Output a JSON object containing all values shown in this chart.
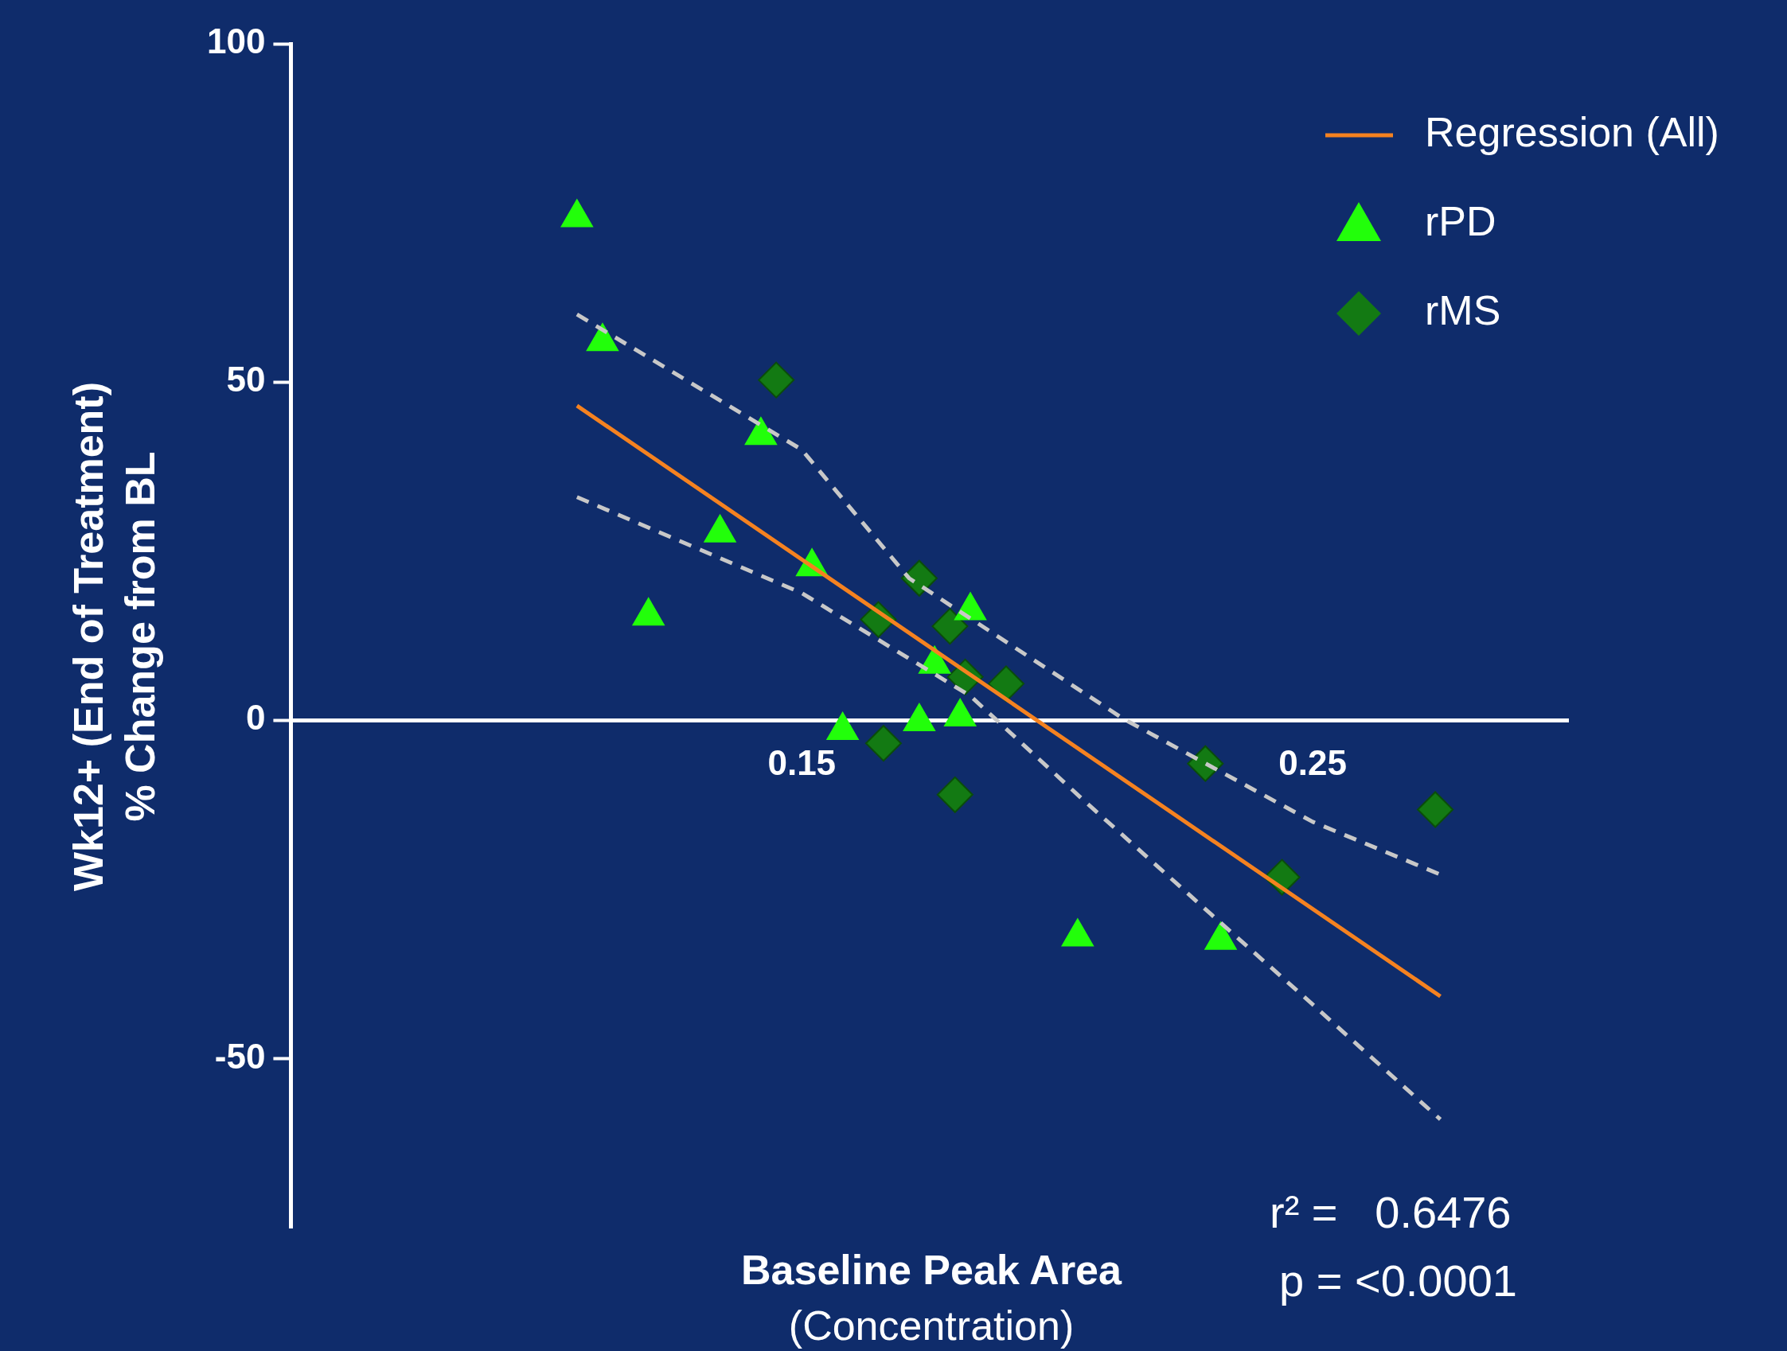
{
  "chart_data": {
    "type": "scatter",
    "xlabel": "Baseline Peak Area\n(Concentration)",
    "ylabel": "Wk12+ (End of Treatment)\n% Change from BL",
    "xlim": [
      0.05,
      0.3
    ],
    "xticks": [
      0.15,
      0.25
    ],
    "ylim": [
      -75,
      100
    ],
    "yticks": [
      -50,
      0,
      50,
      100
    ],
    "grid": false,
    "legend": "top right",
    "series": [
      {
        "name": "Regression (All)",
        "type": "line",
        "color": "#f58220",
        "marker": "none",
        "line_style": "solid",
        "x": [
          0.106,
          0.275
        ],
        "values": [
          46.5,
          -40.8
        ]
      },
      {
        "type": "line",
        "color": "#c8c8c8",
        "marker": "none",
        "line_style": "dashed",
        "x": [
          0.106,
          0.15,
          0.171,
          0.213,
          0.25,
          0.275
        ],
        "values": [
          60,
          40,
          21,
          0.2,
          -15,
          -22.8
        ]
      },
      {
        "type": "line",
        "color": "#c8c8c8",
        "marker": "none",
        "line_style": "dashed",
        "x": [
          0.106,
          0.15,
          0.183,
          0.205,
          0.23,
          0.25,
          0.275
        ],
        "values": [
          33,
          18.8,
          3.6,
          -11.7,
          -28.6,
          -42,
          -59
        ]
      },
      {
        "name": "rPD",
        "color": "#22ff0a",
        "marker": "triangle",
        "x": [
          0.106,
          0.111,
          0.12,
          0.134,
          0.142,
          0.152,
          0.158,
          0.173,
          0.176,
          0.181,
          0.183,
          0.204,
          0.232
        ],
        "values": [
          74.3,
          56,
          15.4,
          27.7,
          42.1,
          22.7,
          -1.5,
          -0.2,
          8.3,
          0.5,
          16.2,
          -32,
          -32.5
        ]
      },
      {
        "name": "rMS",
        "color": "#137a13",
        "marker": "diamond",
        "x": [
          0.145,
          0.173,
          0.165,
          0.179,
          0.182,
          0.19,
          0.166,
          0.18,
          0.229,
          0.244,
          0.274
        ],
        "values": [
          50.3,
          21,
          14.9,
          13.9,
          6.4,
          5.4,
          -3.4,
          -11,
          -6.4,
          -23.2,
          -13.2
        ]
      }
    ],
    "annotations": [
      "r² =   0.6476",
      "p = <0.0001"
    ]
  }
}
